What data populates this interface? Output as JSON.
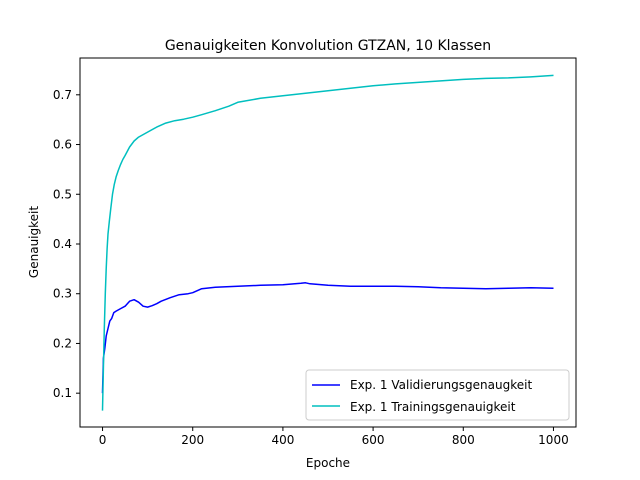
{
  "chart_data": {
    "type": "line",
    "title": "Genauigkeiten Konvolution GTZAN, 10 Klassen",
    "xlabel": "Epoche",
    "ylabel": "Genauigkeit",
    "xlim": [
      -50,
      1050
    ],
    "ylim": [
      0.032,
      0.774
    ],
    "xticks": [
      0,
      200,
      400,
      600,
      800,
      1000
    ],
    "yticks": [
      0.1,
      0.2,
      0.3,
      0.4,
      0.5,
      0.6,
      0.7
    ],
    "grid": false,
    "legend_position": "lower-right",
    "series": [
      {
        "name": "Exp. 1 Validierungsgenaugkeit",
        "color": "#0000ff",
        "x": [
          0,
          2,
          5,
          8,
          12,
          16,
          20,
          25,
          30,
          40,
          50,
          60,
          70,
          80,
          90,
          100,
          110,
          120,
          130,
          150,
          170,
          190,
          200,
          220,
          250,
          300,
          350,
          400,
          440,
          450,
          460,
          500,
          550,
          600,
          650,
          700,
          750,
          800,
          850,
          900,
          950,
          1000
        ],
        "y": [
          0.1,
          0.17,
          0.19,
          0.215,
          0.23,
          0.245,
          0.25,
          0.262,
          0.265,
          0.27,
          0.275,
          0.285,
          0.288,
          0.283,
          0.275,
          0.273,
          0.276,
          0.28,
          0.285,
          0.292,
          0.298,
          0.3,
          0.302,
          0.31,
          0.313,
          0.315,
          0.317,
          0.318,
          0.321,
          0.322,
          0.32,
          0.317,
          0.315,
          0.315,
          0.315,
          0.314,
          0.312,
          0.311,
          0.31,
          0.311,
          0.312,
          0.311
        ]
      },
      {
        "name": "Exp. 1 Trainingsgenauigkeit",
        "color": "#00bfbf",
        "x": [
          0,
          2,
          4,
          6,
          8,
          10,
          12,
          15,
          18,
          22,
          26,
          30,
          35,
          40,
          45,
          50,
          60,
          70,
          80,
          90,
          100,
          120,
          140,
          160,
          180,
          200,
          220,
          250,
          280,
          300,
          350,
          400,
          450,
          500,
          550,
          600,
          650,
          700,
          750,
          800,
          850,
          900,
          950,
          1000
        ],
        "y": [
          0.065,
          0.15,
          0.23,
          0.3,
          0.35,
          0.39,
          0.42,
          0.445,
          0.47,
          0.5,
          0.52,
          0.535,
          0.548,
          0.56,
          0.57,
          0.578,
          0.595,
          0.607,
          0.615,
          0.62,
          0.625,
          0.635,
          0.643,
          0.648,
          0.651,
          0.655,
          0.66,
          0.668,
          0.677,
          0.685,
          0.693,
          0.698,
          0.703,
          0.708,
          0.713,
          0.718,
          0.722,
          0.725,
          0.728,
          0.731,
          0.733,
          0.734,
          0.736,
          0.739
        ]
      }
    ]
  }
}
